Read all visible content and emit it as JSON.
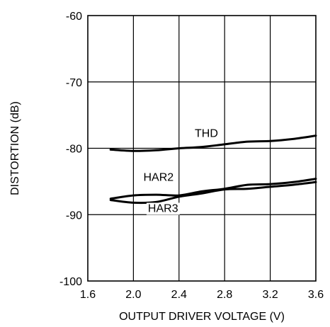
{
  "chart_data": {
    "type": "line",
    "title": "",
    "xlabel": "OUTPUT DRIVER VOLTAGE  (V)",
    "ylabel": "DISTORTION (dB)",
    "xlim": [
      1.6,
      3.6
    ],
    "ylim": [
      -100,
      -60
    ],
    "x_ticks": [
      1.6,
      2.0,
      2.4,
      2.8,
      3.2,
      3.6
    ],
    "x_tick_labels": [
      "1.6",
      "2.0",
      "2.4",
      "2.8",
      "3.2",
      "3.6"
    ],
    "y_ticks": [
      -60,
      -70,
      -80,
      -90,
      -100
    ],
    "y_tick_labels": [
      "-60",
      "-70",
      "-80",
      "-90",
      "-100"
    ],
    "grid": true,
    "legend": "none (series labelled inline)",
    "line_color": "#000000",
    "series": [
      {
        "name": "THD",
        "x": [
          1.8,
          2.0,
          2.2,
          2.4,
          2.6,
          2.8,
          3.0,
          3.2,
          3.4,
          3.6
        ],
        "y": [
          -80.2,
          -80.4,
          -80.3,
          -80.0,
          -79.8,
          -79.4,
          -79.0,
          -78.9,
          -78.6,
          -78.1
        ]
      },
      {
        "name": "HAR2",
        "x": [
          1.8,
          2.0,
          2.2,
          2.4,
          2.6,
          2.8,
          3.0,
          3.2,
          3.4,
          3.6
        ],
        "y": [
          -87.6,
          -87.1,
          -87.0,
          -87.1,
          -86.5,
          -86.1,
          -85.5,
          -85.4,
          -85.1,
          -84.6
        ]
      },
      {
        "name": "HAR3",
        "x": [
          1.8,
          2.0,
          2.2,
          2.4,
          2.6,
          2.8,
          3.0,
          3.2,
          3.4,
          3.6
        ],
        "y": [
          -87.8,
          -88.2,
          -88.1,
          -87.3,
          -86.8,
          -86.2,
          -86.1,
          -85.8,
          -85.5,
          -85.1
        ]
      }
    ],
    "annotations": [
      {
        "text": "THD",
        "x": 2.64,
        "y": -78.3
      },
      {
        "text": "HAR2",
        "x": 2.22,
        "y": -84.9
      },
      {
        "text": "HAR3",
        "x": 2.26,
        "y": -89.6
      }
    ]
  }
}
